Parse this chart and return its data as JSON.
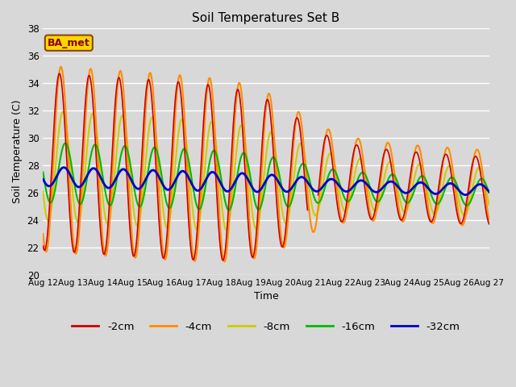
{
  "title": "Soil Temperatures Set B",
  "xlabel": "Time",
  "ylabel": "Soil Temperature (C)",
  "ylim": [
    20,
    38
  ],
  "xlim": [
    0,
    15
  ],
  "fig_facecolor": "#d8d8d8",
  "plot_facecolor": "#d8d8d8",
  "annotation_text": "BA_met",
  "annotation_color": "#8B0000",
  "annotation_bg": "#FFD700",
  "annotation_edge": "#8B4513",
  "legend_labels": [
    "-2cm",
    "-4cm",
    "-8cm",
    "-16cm",
    "-32cm"
  ],
  "legend_colors": [
    "#CC0000",
    "#FF8C00",
    "#CCCC00",
    "#00BB00",
    "#0000CC"
  ],
  "line_widths": [
    1.2,
    1.5,
    1.5,
    1.5,
    2.0
  ],
  "xtick_labels": [
    "Aug 12",
    "Aug 13",
    "Aug 14",
    "Aug 15",
    "Aug 16",
    "Aug 17",
    "Aug 18",
    "Aug 19",
    "Aug 20",
    "Aug 21",
    "Aug 22",
    "Aug 23",
    "Aug 24",
    "Aug 25",
    "Aug 26",
    "Aug 27"
  ],
  "ytick_values": [
    20,
    22,
    24,
    26,
    28,
    30,
    32,
    34,
    36,
    38
  ],
  "grid_color": "#ffffff",
  "n_points": 721
}
